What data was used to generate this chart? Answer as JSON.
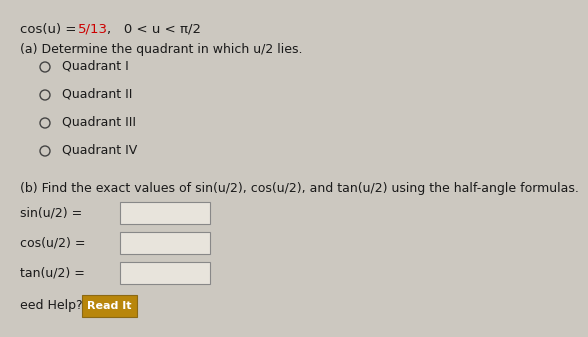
{
  "bg_color": "#ccc8c0",
  "title_part1": "cos(u) = ",
  "title_red": "5/13",
  "title_part2": ",   0 < u < π/2",
  "part_a_label": "(a) Determine the quadrant in which u/2 lies.",
  "radio_options": [
    "Quadrant I",
    "Quadrant II",
    "Quadrant III",
    "Quadrant IV"
  ],
  "part_b_label": "(b) Find the exact values of sin(u/2), cos(u/2), and tan(u/2) using the half-angle formulas.",
  "input_labels": [
    "sin(u/2) =",
    "cos(u/2) =",
    "tan(u/2) ="
  ],
  "box_facecolor": "#e8e4dc",
  "box_edgecolor": "#888888",
  "help_label": "eed Help?",
  "read_it_label": "Read It",
  "read_it_box_color": "#b8860b",
  "read_it_border": "#8b6914",
  "font_color": "#1a1a1a",
  "bold_color": "#cc0000",
  "title_fontsize": 9.5,
  "body_fontsize": 9.0,
  "small_fontsize": 8.5,
  "radio_circle_color": "#444444"
}
